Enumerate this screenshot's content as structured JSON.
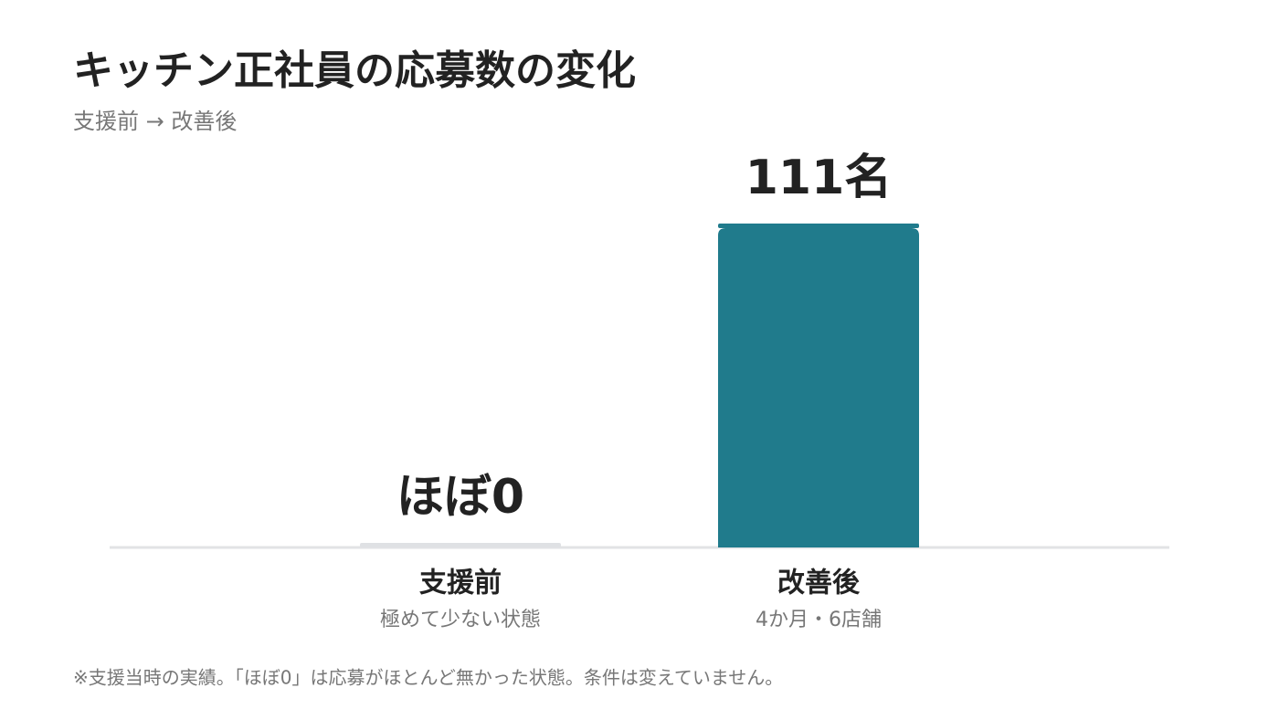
{
  "chart_data": {
    "type": "bar",
    "title": "キッチン正社員の応募数の変化",
    "subtitle": "支援前 → 改善後",
    "categories": [
      "支援前",
      "改善後"
    ],
    "category_notes": [
      "極めて少ない状態",
      "4か月・6店舗"
    ],
    "values": [
      0,
      111
    ],
    "value_labels": [
      "ほぼ0",
      "111名"
    ],
    "colors": [
      "#dfe1e4",
      "#207b8c"
    ],
    "ylim": [
      0,
      111
    ],
    "footnote": "※支援当時の実績。「ほぼ0」は応募がほとんど無かった状態。条件は変えていません。"
  }
}
